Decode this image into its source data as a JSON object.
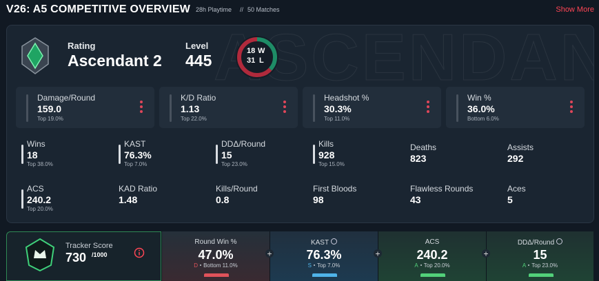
{
  "header": {
    "title": "V26: A5 COMPETITIVE OVERVIEW",
    "playtime": "28h Playtime",
    "separator": "//",
    "matches": "50 Matches",
    "show_more": "Show More"
  },
  "overview": {
    "watermark": "ASCENDANT",
    "rating_label": "Rating",
    "rating": "Ascendant 2",
    "level_label": "Level",
    "level": "445",
    "wins": 18,
    "wins_suffix": "W",
    "losses": 31,
    "losses_suffix": "L"
  },
  "main_stats": [
    {
      "label": "Damage/Round",
      "value": "159.0",
      "rank": "Top 19.0%"
    },
    {
      "label": "K/D Ratio",
      "value": "1.13",
      "rank": "Top 22.0%"
    },
    {
      "label": "Headshot %",
      "value": "30.3%",
      "rank": "Top 11.0%"
    },
    {
      "label": "Win %",
      "value": "36.0%",
      "rank": "Bottom 6.0%"
    }
  ],
  "stats": [
    {
      "label": "Wins",
      "value": "18",
      "rank": "Top 38.0%"
    },
    {
      "label": "KAST",
      "value": "76.3%",
      "rank": "Top 7.0%"
    },
    {
      "label": "DDΔ/Round",
      "value": "15",
      "rank": "Top 23.0%"
    },
    {
      "label": "Kills",
      "value": "928",
      "rank": "Top 15.0%"
    },
    {
      "label": "Deaths",
      "value": "823"
    },
    {
      "label": "Assists",
      "value": "292"
    },
    {
      "label": "ACS",
      "value": "240.2",
      "rank": "Top 20.0%"
    },
    {
      "label": "KAD Ratio",
      "value": "1.48"
    },
    {
      "label": "Kills/Round",
      "value": "0.8"
    },
    {
      "label": "First Bloods",
      "value": "98"
    },
    {
      "label": "Flawless Rounds",
      "value": "43"
    },
    {
      "label": "Aces",
      "value": "5"
    }
  ],
  "tracker": {
    "label": "Tracker Score",
    "score": "730",
    "max": "/1000"
  },
  "highlights": [
    {
      "label": "Round Win %",
      "value": "47.0%",
      "grade": "D",
      "rank": "Bottom 11.0%",
      "info": false,
      "color": "#e0525a"
    },
    {
      "label": "KAST",
      "value": "76.3%",
      "grade": "S",
      "rank": "Top 7.0%",
      "info": true,
      "color": "#4fb3e8"
    },
    {
      "label": "ACS",
      "value": "240.2",
      "grade": "A",
      "rank": "Top 20.0%",
      "info": false,
      "color": "#52d07a"
    },
    {
      "label": "DDΔ/Round",
      "value": "15",
      "grade": "A",
      "rank": "Top 23.0%",
      "info": true,
      "color": "#52d07a"
    }
  ]
}
